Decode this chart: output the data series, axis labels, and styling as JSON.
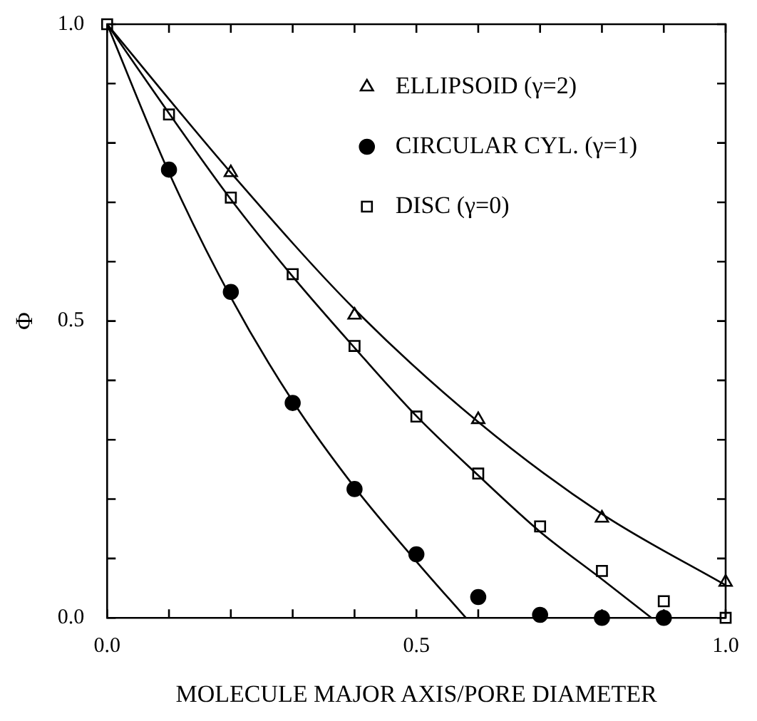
{
  "chart_data": {
    "type": "scatter",
    "xlabel": "MOLECULE MAJOR AXIS/PORE DIAMETER",
    "ylabel": "Φ",
    "xlim": [
      0,
      1
    ],
    "ylim": [
      0,
      1
    ],
    "xticks": [
      {
        "value": 0,
        "label": "0.0"
      },
      {
        "value": 0.1,
        "label": null
      },
      {
        "value": 0.2,
        "label": null
      },
      {
        "value": 0.3,
        "label": null
      },
      {
        "value": 0.4,
        "label": null
      },
      0.5,
      {
        "value": 0.6,
        "label": null
      },
      {
        "value": 0.7,
        "label": null
      },
      {
        "value": 0.8,
        "label": null
      },
      {
        "value": 0.9,
        "label": null
      },
      {
        "value": 1,
        "label": "1.0"
      }
    ],
    "yticks": [
      {
        "value": 0,
        "label": "0.0"
      },
      {
        "value": 0.1,
        "label": null
      },
      {
        "value": 0.2,
        "label": null
      },
      {
        "value": 0.3,
        "label": null
      },
      {
        "value": 0.4,
        "label": null
      },
      0.5,
      {
        "value": 0.6,
        "label": null
      },
      {
        "value": 0.7,
        "label": null
      },
      {
        "value": 0.8,
        "label": null
      },
      {
        "value": 0.9,
        "label": null
      },
      {
        "value": 1,
        "label": "1.0"
      }
    ],
    "grid": false,
    "legend": "top right",
    "series": [
      {
        "name": "ELLIPSOID (γ=2)",
        "color": "#000000",
        "marker": "triangle",
        "x": [
          0.2,
          0.4,
          0.6,
          0.8,
          1.0
        ],
        "values": [
          0.75,
          0.51,
          0.334,
          0.168,
          0.06
        ]
      },
      {
        "name": "CIRCULAR CYL. (γ=1)",
        "color": "#000000",
        "marker": "circle",
        "x": [
          0.1,
          0.2,
          0.3,
          0.4,
          0.5,
          0.6,
          0.7,
          0.8,
          0.9
        ],
        "values": [
          0.755,
          0.549,
          0.362,
          0.217,
          0.107,
          0.035,
          0.005,
          0,
          0
        ]
      },
      {
        "name": "DISC (γ=0)",
        "color": "#000000",
        "marker": "square",
        "x": [
          0,
          0.1,
          0.2,
          0.3,
          0.4,
          0.5,
          0.6,
          0.7,
          0.8,
          0.9,
          1.0
        ],
        "values": [
          1,
          0.848,
          0.708,
          0.579,
          0.458,
          0.339,
          0.243,
          0.154,
          0.079,
          0.028,
          0
        ]
      },
      {
        "type": "line",
        "color": "#000000",
        "marker": "none",
        "x": [
          0,
          0.2,
          0.4,
          0.6,
          0.8,
          1.0
        ],
        "values": [
          1,
          0.75,
          0.52,
          0.33,
          0.175,
          0.055
        ]
      },
      {
        "type": "line",
        "color": "#000000",
        "marker": "none",
        "x": [
          0,
          0.1,
          0.2,
          0.3,
          0.4,
          0.5,
          0.58
        ],
        "values": [
          1,
          0.75,
          0.54,
          0.365,
          0.22,
          0.095,
          0
        ]
      },
      {
        "type": "line",
        "color": "#000000",
        "marker": "none",
        "x": [
          0,
          0.1,
          0.2,
          0.3,
          0.4,
          0.5,
          0.6,
          0.7,
          0.8,
          0.88
        ],
        "values": [
          1,
          0.85,
          0.705,
          0.575,
          0.455,
          0.34,
          0.24,
          0.145,
          0.065,
          0
        ]
      }
    ]
  }
}
